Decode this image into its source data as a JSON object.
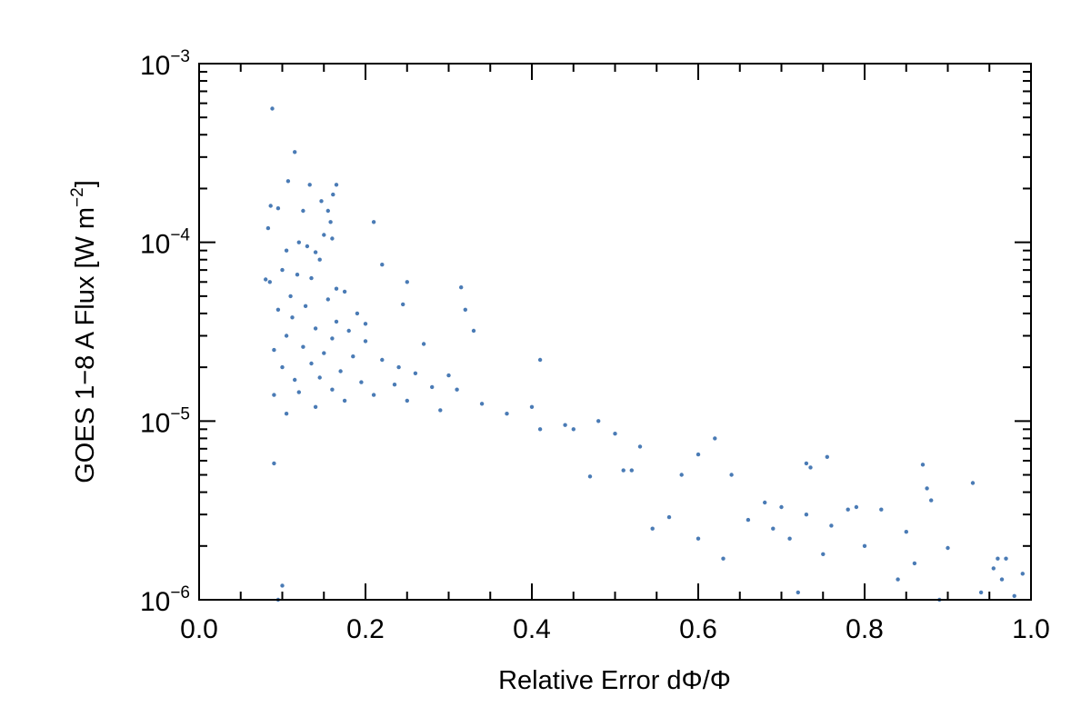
{
  "chart_data": {
    "type": "scatter",
    "title": "",
    "xlabel": "Relative Error dΦ/Φ",
    "ylabel": "GOES 1−8 A Flux [W m⁻²]",
    "ylabel_parts": {
      "main": "GOES 1−8 A Flux [W m",
      "sup": "−2",
      "end": "]"
    },
    "xlim": [
      0.0,
      1.0
    ],
    "ylim": [
      1e-06,
      0.001
    ],
    "yscale": "log",
    "grid": false,
    "legend": "none",
    "x_ticks": [
      {
        "value": 0.0,
        "label": "0.0"
      },
      {
        "value": 0.2,
        "label": "0.2"
      },
      {
        "value": 0.4,
        "label": "0.4"
      },
      {
        "value": 0.6,
        "label": "0.6"
      },
      {
        "value": 0.8,
        "label": "0.8"
      },
      {
        "value": 1.0,
        "label": "1.0"
      }
    ],
    "y_ticks": [
      {
        "value": 1e-06,
        "base": "10",
        "exp": "−6"
      },
      {
        "value": 1e-05,
        "base": "10",
        "exp": "−5"
      },
      {
        "value": 0.0001,
        "base": "10",
        "exp": "−4"
      },
      {
        "value": 0.001,
        "base": "10",
        "exp": "−3"
      }
    ],
    "series": [
      {
        "color": "#4a7bb5",
        "points": [
          [
            0.088,
            0.00056
          ],
          [
            0.115,
            0.00032
          ],
          [
            0.107,
            0.00022
          ],
          [
            0.133,
            0.00021
          ],
          [
            0.165,
            0.00021
          ],
          [
            0.161,
            0.000185
          ],
          [
            0.147,
            0.00017
          ],
          [
            0.086,
            0.00016
          ],
          [
            0.095,
            0.000155
          ],
          [
            0.125,
            0.00015
          ],
          [
            0.155,
            0.00015
          ],
          [
            0.21,
            0.00013
          ],
          [
            0.158,
            0.00013
          ],
          [
            0.083,
            0.00012
          ],
          [
            0.15,
            0.00011
          ],
          [
            0.16,
            0.000105
          ],
          [
            0.12,
            0.0001
          ],
          [
            0.13,
            9.5e-05
          ],
          [
            0.105,
            9e-05
          ],
          [
            0.14,
            8.8e-05
          ],
          [
            0.145,
            8e-05
          ],
          [
            0.22,
            7.5e-05
          ],
          [
            0.1,
            7e-05
          ],
          [
            0.118,
            6.6e-05
          ],
          [
            0.135,
            6.3e-05
          ],
          [
            0.08,
            6.2e-05
          ],
          [
            0.085,
            6e-05
          ],
          [
            0.25,
            6e-05
          ],
          [
            0.315,
            5.6e-05
          ],
          [
            0.165,
            5.5e-05
          ],
          [
            0.175,
            5.3e-05
          ],
          [
            0.11,
            5e-05
          ],
          [
            0.155,
            4.8e-05
          ],
          [
            0.245,
            4.5e-05
          ],
          [
            0.128,
            4.4e-05
          ],
          [
            0.095,
            4.2e-05
          ],
          [
            0.32,
            4.2e-05
          ],
          [
            0.19,
            4e-05
          ],
          [
            0.112,
            3.8e-05
          ],
          [
            0.165,
            3.6e-05
          ],
          [
            0.2,
            3.5e-05
          ],
          [
            0.14,
            3.3e-05
          ],
          [
            0.18,
            3.2e-05
          ],
          [
            0.33,
            3.2e-05
          ],
          [
            0.105,
            3e-05
          ],
          [
            0.16,
            2.9e-05
          ],
          [
            0.2,
            2.8e-05
          ],
          [
            0.27,
            2.7e-05
          ],
          [
            0.125,
            2.6e-05
          ],
          [
            0.09,
            2.5e-05
          ],
          [
            0.15,
            2.4e-05
          ],
          [
            0.185,
            2.3e-05
          ],
          [
            0.41,
            2.2e-05
          ],
          [
            0.22,
            2.2e-05
          ],
          [
            0.135,
            2.1e-05
          ],
          [
            0.24,
            2e-05
          ],
          [
            0.1,
            2e-05
          ],
          [
            0.17,
            1.9e-05
          ],
          [
            0.26,
            1.85e-05
          ],
          [
            0.3,
            1.8e-05
          ],
          [
            0.145,
            1.75e-05
          ],
          [
            0.115,
            1.7e-05
          ],
          [
            0.195,
            1.65e-05
          ],
          [
            0.235,
            1.6e-05
          ],
          [
            0.28,
            1.55e-05
          ],
          [
            0.16,
            1.5e-05
          ],
          [
            0.31,
            1.5e-05
          ],
          [
            0.12,
            1.45e-05
          ],
          [
            0.21,
            1.4e-05
          ],
          [
            0.09,
            1.4e-05
          ],
          [
            0.175,
            1.3e-05
          ],
          [
            0.25,
            1.3e-05
          ],
          [
            0.34,
            1.25e-05
          ],
          [
            0.4,
            1.2e-05
          ],
          [
            0.14,
            1.2e-05
          ],
          [
            0.29,
            1.15e-05
          ],
          [
            0.105,
            1.1e-05
          ],
          [
            0.37,
            1.1e-05
          ],
          [
            0.48,
            1e-05
          ],
          [
            0.44,
            9.5e-06
          ],
          [
            0.45,
            9e-06
          ],
          [
            0.41,
            9e-06
          ],
          [
            0.5,
            8.5e-06
          ],
          [
            0.62,
            8e-06
          ],
          [
            0.53,
            7.2e-06
          ],
          [
            0.6,
            6.5e-06
          ],
          [
            0.755,
            6.3e-06
          ],
          [
            0.73,
            5.8e-06
          ],
          [
            0.735,
            5.5e-06
          ],
          [
            0.87,
            5.7e-06
          ],
          [
            0.09,
            5.8e-06
          ],
          [
            0.51,
            5.3e-06
          ],
          [
            0.52,
            5.3e-06
          ],
          [
            0.58,
            5e-06
          ],
          [
            0.64,
            5e-06
          ],
          [
            0.47,
            4.9e-06
          ],
          [
            0.93,
            4.5e-06
          ],
          [
            0.875,
            4.2e-06
          ],
          [
            0.88,
            3.6e-06
          ],
          [
            0.68,
            3.5e-06
          ],
          [
            0.7,
            3.3e-06
          ],
          [
            0.78,
            3.2e-06
          ],
          [
            0.79,
            3.3e-06
          ],
          [
            0.82,
            3.2e-06
          ],
          [
            0.73,
            3e-06
          ],
          [
            0.66,
            2.8e-06
          ],
          [
            0.76,
            2.6e-06
          ],
          [
            0.69,
            2.5e-06
          ],
          [
            0.85,
            2.4e-06
          ],
          [
            0.6,
            2.2e-06
          ],
          [
            0.71,
            2.2e-06
          ],
          [
            0.8,
            2e-06
          ],
          [
            0.9,
            1.95e-06
          ],
          [
            0.75,
            1.8e-06
          ],
          [
            0.63,
            1.7e-06
          ],
          [
            0.86,
            1.6e-06
          ],
          [
            0.96,
            1.7e-06
          ],
          [
            0.97,
            1.7e-06
          ],
          [
            0.955,
            1.5e-06
          ],
          [
            0.99,
            1.4e-06
          ],
          [
            0.965,
            1.3e-06
          ],
          [
            0.84,
            1.3e-06
          ],
          [
            0.94,
            1.1e-06
          ],
          [
            0.72,
            1.1e-06
          ],
          [
            0.89,
            1e-06
          ],
          [
            0.98,
            1.05e-06
          ],
          [
            0.1,
            1.2e-06
          ],
          [
            0.095,
            1e-06
          ],
          [
            0.565,
            2.9e-06
          ],
          [
            0.545,
            2.5e-06
          ]
        ]
      }
    ]
  }
}
